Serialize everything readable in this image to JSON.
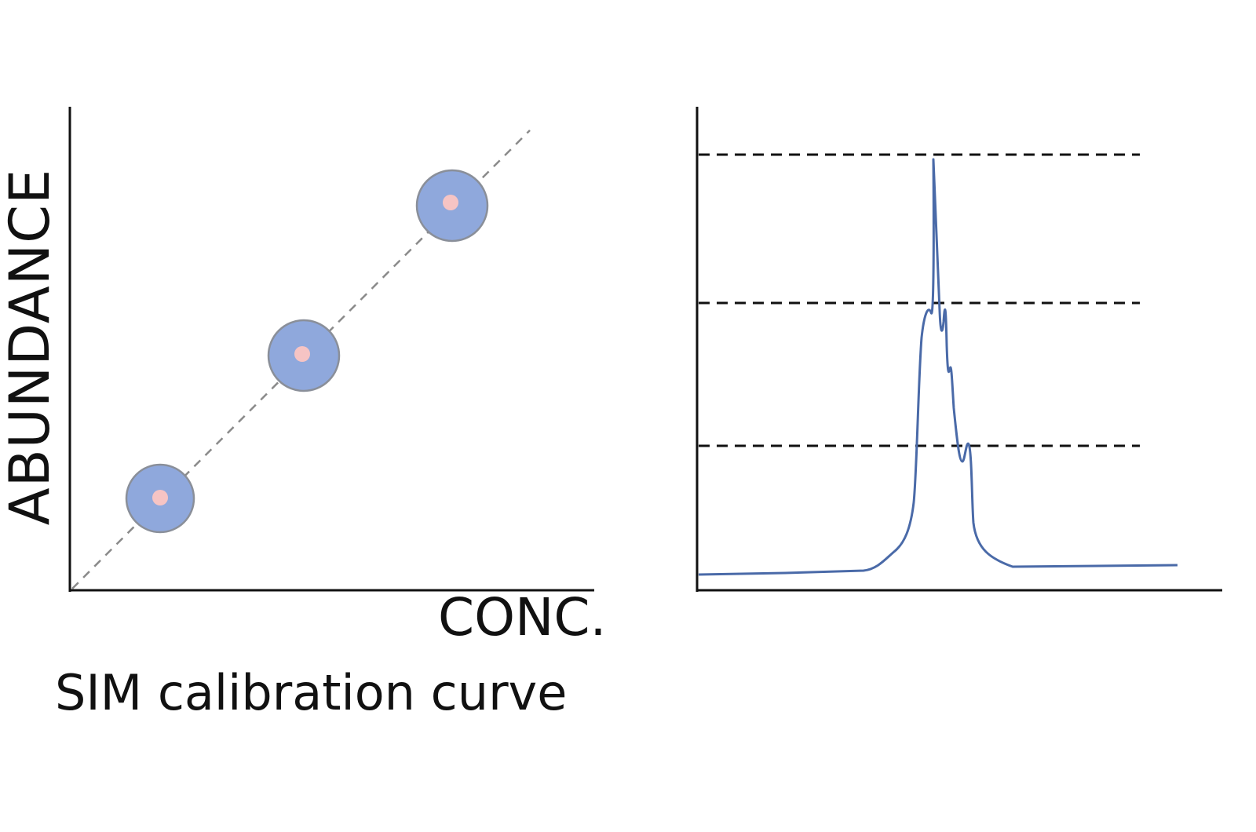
{
  "left_panel": {
    "y_axis_label": "ABUNDANCE",
    "x_axis_label": "CONC.",
    "caption": "SIM calibration curve",
    "points": 3
  },
  "right_panel": {
    "reference_levels": 3,
    "peak": "single chromatographic peak with shoulders"
  },
  "colors": {
    "axis": "#111111",
    "fit_line": "#8a8a8a",
    "point_fill": "#8fa8dc",
    "point_stroke": "#8a8f99",
    "point_core": "#f6c4c4",
    "reference_line": "#111111",
    "trace": "#4a6aa8"
  }
}
